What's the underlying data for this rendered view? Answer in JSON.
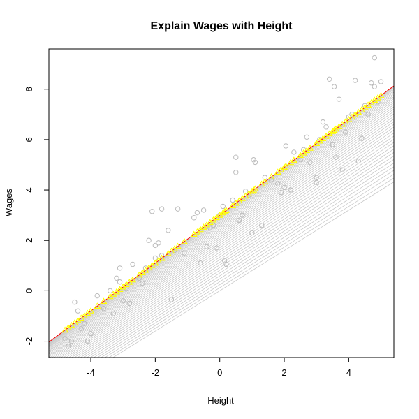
{
  "chart_data": {
    "type": "scatter",
    "title": "Explain Wages with Height",
    "xlabel": "Height",
    "ylabel": "Wages",
    "xlim": [
      -5.3,
      5.4
    ],
    "ylim": [
      -2.65,
      9.6
    ],
    "xticks": [
      -4,
      -2,
      0,
      2,
      4
    ],
    "yticks": [
      -2,
      0,
      2,
      4,
      6,
      8
    ],
    "grid": false,
    "colors": {
      "points": "#bbbbbb",
      "fan_lines": "#c8c8c8",
      "fitted_points": "#ffff00",
      "fit_line": "#ff0000"
    },
    "fit_line": {
      "intercept": 3.0,
      "slope": 0.95
    },
    "fan_lines": {
      "count": 40,
      "intercept_start": 3.0,
      "intercept_end": 0.0,
      "slope_start": 0.95,
      "slope_end": 0.8
    },
    "series": [
      {
        "type": "scatter",
        "points": [
          [
            -4.8,
            -1.9
          ],
          [
            -4.7,
            -2.2
          ],
          [
            -4.6,
            -2.0
          ],
          [
            -4.5,
            -0.45
          ],
          [
            -4.4,
            -0.8
          ],
          [
            -4.3,
            -1.5
          ],
          [
            -4.2,
            -1.3
          ],
          [
            -4.1,
            -2.0
          ],
          [
            -4.0,
            -1.7
          ],
          [
            -3.8,
            -0.2
          ],
          [
            -3.6,
            -0.7
          ],
          [
            -3.4,
            0.0
          ],
          [
            -3.3,
            -0.9
          ],
          [
            -3.2,
            0.5
          ],
          [
            -3.1,
            0.9
          ],
          [
            -3.0,
            -0.4
          ],
          [
            -2.9,
            0.1
          ],
          [
            -2.8,
            -0.5
          ],
          [
            -2.7,
            1.05
          ],
          [
            -2.5,
            0.5
          ],
          [
            -2.4,
            0.3
          ],
          [
            -2.3,
            0.9
          ],
          [
            -2.2,
            2.0
          ],
          [
            -2.1,
            3.15
          ],
          [
            -2.0,
            1.8
          ],
          [
            -1.9,
            1.9
          ],
          [
            -1.8,
            1.4
          ],
          [
            -1.8,
            3.25
          ],
          [
            -1.6,
            2.4
          ],
          [
            -1.5,
            -0.35
          ],
          [
            -1.4,
            1.6
          ],
          [
            -1.3,
            3.25
          ],
          [
            -1.1,
            1.5
          ],
          [
            -0.8,
            2.9
          ],
          [
            -0.7,
            3.1
          ],
          [
            -0.6,
            1.1
          ],
          [
            -0.5,
            3.2
          ],
          [
            -0.4,
            1.75
          ],
          [
            -0.2,
            2.6
          ],
          [
            -0.1,
            1.7
          ],
          [
            0.0,
            3.0
          ],
          [
            0.1,
            3.35
          ],
          [
            0.15,
            1.2
          ],
          [
            0.2,
            1.05
          ],
          [
            0.4,
            3.6
          ],
          [
            0.5,
            5.3
          ],
          [
            0.5,
            4.7
          ],
          [
            0.6,
            2.8
          ],
          [
            0.7,
            3.0
          ],
          [
            0.8,
            3.95
          ],
          [
            0.9,
            3.8
          ],
          [
            1.0,
            2.3
          ],
          [
            1.05,
            5.2
          ],
          [
            1.1,
            5.1
          ],
          [
            1.3,
            2.6
          ],
          [
            1.6,
            4.4
          ],
          [
            1.8,
            4.25
          ],
          [
            1.9,
            3.9
          ],
          [
            2.0,
            4.1
          ],
          [
            2.05,
            5.75
          ],
          [
            2.2,
            4.0
          ],
          [
            2.3,
            5.5
          ],
          [
            2.5,
            5.2
          ],
          [
            2.7,
            6.1
          ],
          [
            2.8,
            5.1
          ],
          [
            3.0,
            4.3
          ],
          [
            3.0,
            4.5
          ],
          [
            3.1,
            6.0
          ],
          [
            3.2,
            6.7
          ],
          [
            3.3,
            6.5
          ],
          [
            3.4,
            8.4
          ],
          [
            3.5,
            5.8
          ],
          [
            3.55,
            8.1
          ],
          [
            3.6,
            5.3
          ],
          [
            3.7,
            7.6
          ],
          [
            3.8,
            4.8
          ],
          [
            3.9,
            6.3
          ],
          [
            4.1,
            7.0
          ],
          [
            4.2,
            8.35
          ],
          [
            4.3,
            5.15
          ],
          [
            4.4,
            6.05
          ],
          [
            4.5,
            7.35
          ],
          [
            4.6,
            7.0
          ],
          [
            4.7,
            8.25
          ],
          [
            4.8,
            9.25
          ],
          [
            4.8,
            8.1
          ],
          [
            4.9,
            7.5
          ],
          [
            5.0,
            8.3
          ],
          [
            -3.1,
            0.35
          ],
          [
            -2.0,
            1.3
          ],
          [
            1.4,
            4.5
          ],
          [
            2.6,
            5.6
          ],
          [
            -0.3,
            2.5
          ],
          [
            4.0,
            6.9
          ]
        ]
      }
    ]
  }
}
